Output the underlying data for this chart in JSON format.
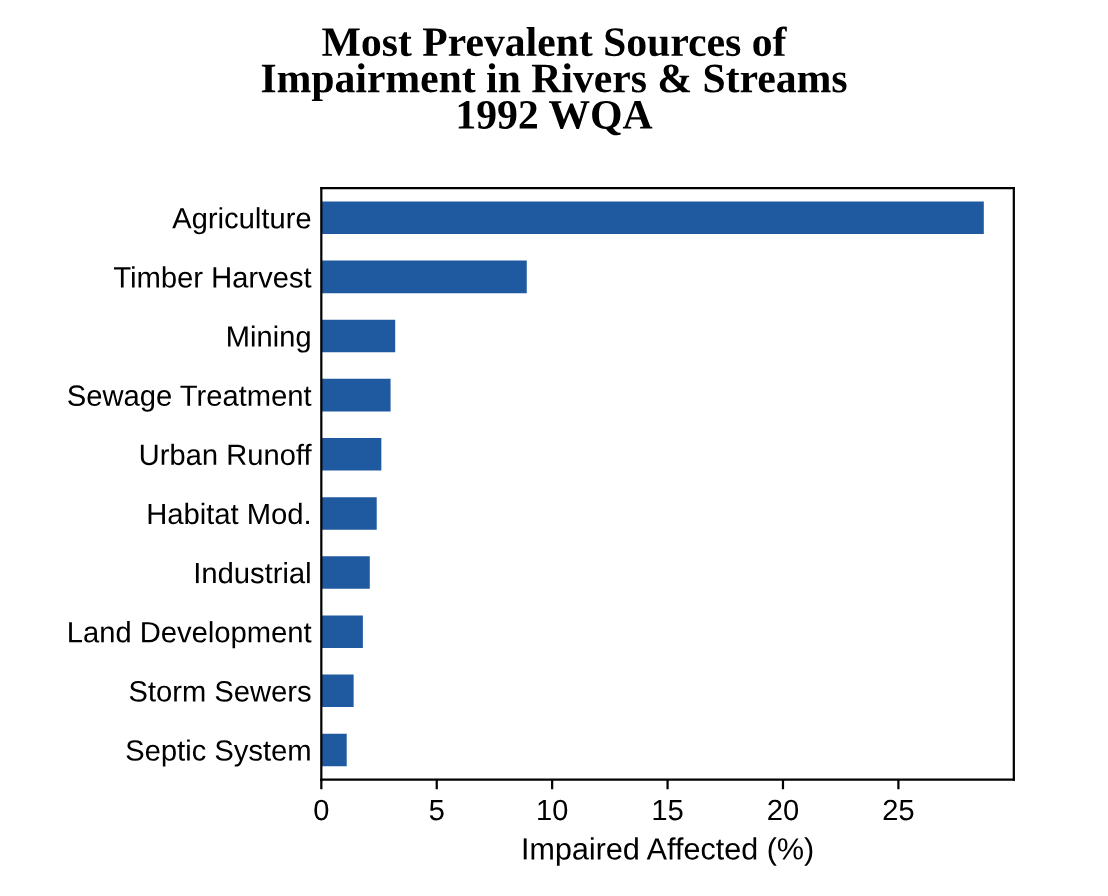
{
  "chart_data": {
    "type": "bar",
    "orientation": "horizontal",
    "title": "Most Prevalent Sources of\nImpairment in Rivers & Streams\n1992 WQA",
    "xlabel": "Impaired Affected (%)",
    "categories": [
      "Agriculture",
      "Timber Harvest",
      "Mining",
      "Sewage Treatment",
      "Urban Runoff",
      "Habitat Mod.",
      "Industrial",
      "Land Development",
      "Storm Sewers",
      "Septic System"
    ],
    "values": [
      28.7,
      8.9,
      3.2,
      3.0,
      2.6,
      2.4,
      2.1,
      1.8,
      1.4,
      1.1
    ],
    "color": "#1f5aa0",
    "xlim": [
      0,
      30
    ],
    "xticks": [
      0,
      5,
      10,
      15,
      20,
      25
    ],
    "grid": false
  }
}
